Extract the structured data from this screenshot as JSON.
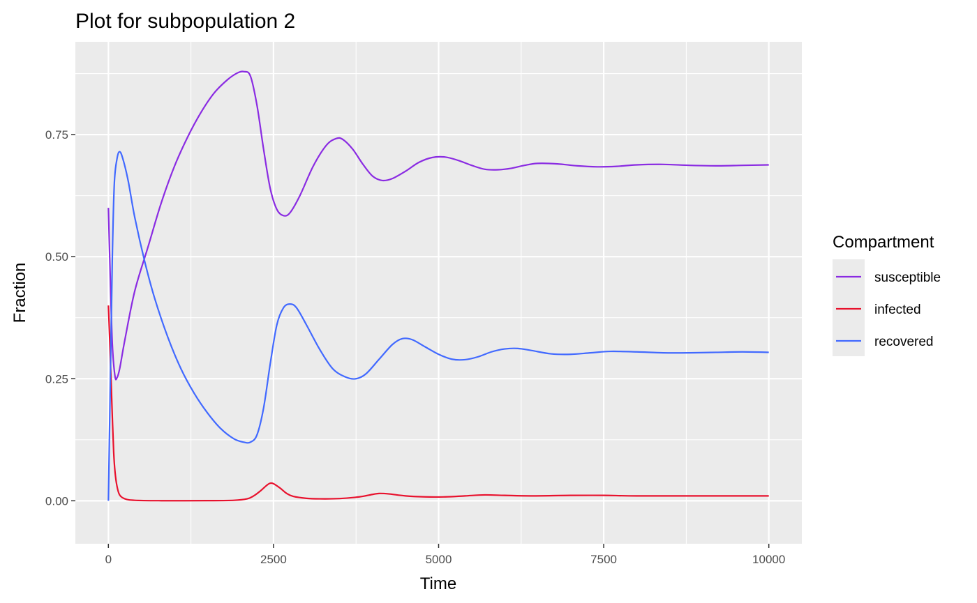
{
  "chart_data": {
    "type": "line",
    "title": "Plot for subpopulation 2",
    "xlabel": "Time",
    "ylabel": "Fraction",
    "xlim": [
      -500,
      10500
    ],
    "ylim": [
      -0.088,
      0.94
    ],
    "x_ticks": [
      0,
      2500,
      5000,
      7500,
      10000
    ],
    "x_tick_labels": [
      "0",
      "2500",
      "5000",
      "7500",
      "10000"
    ],
    "y_ticks": [
      0,
      0.25,
      0.5,
      0.75
    ],
    "y_tick_labels": [
      "0.00",
      "0.25",
      "0.50",
      "0.75"
    ],
    "grid": true,
    "legend_position": "right",
    "legend_title": "Compartment",
    "series": [
      {
        "name": "susceptible",
        "color": "#8a2be2",
        "points": [
          [
            0,
            0.6
          ],
          [
            30,
            0.45
          ],
          [
            60,
            0.32
          ],
          [
            100,
            0.255
          ],
          [
            130,
            0.252
          ],
          [
            170,
            0.27
          ],
          [
            250,
            0.33
          ],
          [
            400,
            0.43
          ],
          [
            600,
            0.52
          ],
          [
            800,
            0.61
          ],
          [
            1000,
            0.685
          ],
          [
            1200,
            0.745
          ],
          [
            1400,
            0.795
          ],
          [
            1600,
            0.835
          ],
          [
            1800,
            0.862
          ],
          [
            1950,
            0.876
          ],
          [
            2050,
            0.879
          ],
          [
            2150,
            0.87
          ],
          [
            2250,
            0.81
          ],
          [
            2350,
            0.72
          ],
          [
            2450,
            0.64
          ],
          [
            2550,
            0.597
          ],
          [
            2650,
            0.584
          ],
          [
            2750,
            0.59
          ],
          [
            2900,
            0.625
          ],
          [
            3100,
            0.685
          ],
          [
            3300,
            0.728
          ],
          [
            3450,
            0.742
          ],
          [
            3550,
            0.74
          ],
          [
            3700,
            0.72
          ],
          [
            3850,
            0.69
          ],
          [
            4000,
            0.665
          ],
          [
            4150,
            0.656
          ],
          [
            4300,
            0.66
          ],
          [
            4500,
            0.675
          ],
          [
            4700,
            0.693
          ],
          [
            4900,
            0.703
          ],
          [
            5100,
            0.704
          ],
          [
            5300,
            0.697
          ],
          [
            5500,
            0.687
          ],
          [
            5700,
            0.679
          ],
          [
            5900,
            0.678
          ],
          [
            6100,
            0.681
          ],
          [
            6300,
            0.687
          ],
          [
            6500,
            0.691
          ],
          [
            6800,
            0.69
          ],
          [
            7100,
            0.686
          ],
          [
            7400,
            0.684
          ],
          [
            7700,
            0.685
          ],
          [
            8000,
            0.688
          ],
          [
            8400,
            0.689
          ],
          [
            8800,
            0.687
          ],
          [
            9200,
            0.686
          ],
          [
            9600,
            0.687
          ],
          [
            10000,
            0.688
          ]
        ]
      },
      {
        "name": "infected",
        "color": "#e8112d",
        "points": [
          [
            0,
            0.4
          ],
          [
            20,
            0.33
          ],
          [
            40,
            0.25
          ],
          [
            60,
            0.17
          ],
          [
            80,
            0.1
          ],
          [
            100,
            0.06
          ],
          [
            130,
            0.03
          ],
          [
            170,
            0.012
          ],
          [
            250,
            0.004
          ],
          [
            400,
            0.001
          ],
          [
            800,
            0.0002
          ],
          [
            1500,
            0.0003
          ],
          [
            1900,
            0.001
          ],
          [
            2100,
            0.004
          ],
          [
            2200,
            0.01
          ],
          [
            2300,
            0.02
          ],
          [
            2400,
            0.032
          ],
          [
            2450,
            0.036
          ],
          [
            2500,
            0.035
          ],
          [
            2600,
            0.026
          ],
          [
            2700,
            0.015
          ],
          [
            2800,
            0.009
          ],
          [
            3000,
            0.005
          ],
          [
            3200,
            0.004
          ],
          [
            3500,
            0.0045
          ],
          [
            3800,
            0.008
          ],
          [
            4000,
            0.013
          ],
          [
            4100,
            0.015
          ],
          [
            4250,
            0.014
          ],
          [
            4500,
            0.01
          ],
          [
            4800,
            0.008
          ],
          [
            5100,
            0.008
          ],
          [
            5400,
            0.01
          ],
          [
            5700,
            0.012
          ],
          [
            6000,
            0.011
          ],
          [
            6400,
            0.01
          ],
          [
            7000,
            0.011
          ],
          [
            7500,
            0.011
          ],
          [
            8000,
            0.01
          ],
          [
            9000,
            0.01
          ],
          [
            10000,
            0.01
          ]
        ]
      },
      {
        "name": "recovered",
        "color": "#4169ff",
        "points": [
          [
            0,
            0.0
          ],
          [
            30,
            0.25
          ],
          [
            60,
            0.5
          ],
          [
            90,
            0.65
          ],
          [
            130,
            0.7
          ],
          [
            170,
            0.715
          ],
          [
            220,
            0.7
          ],
          [
            300,
            0.655
          ],
          [
            400,
            0.58
          ],
          [
            550,
            0.49
          ],
          [
            700,
            0.415
          ],
          [
            900,
            0.335
          ],
          [
            1100,
            0.27
          ],
          [
            1300,
            0.22
          ],
          [
            1500,
            0.18
          ],
          [
            1700,
            0.148
          ],
          [
            1900,
            0.127
          ],
          [
            2050,
            0.12
          ],
          [
            2150,
            0.12
          ],
          [
            2250,
            0.135
          ],
          [
            2350,
            0.19
          ],
          [
            2450,
            0.28
          ],
          [
            2550,
            0.36
          ],
          [
            2650,
            0.395
          ],
          [
            2750,
            0.403
          ],
          [
            2850,
            0.395
          ],
          [
            3000,
            0.36
          ],
          [
            3200,
            0.31
          ],
          [
            3400,
            0.27
          ],
          [
            3600,
            0.253
          ],
          [
            3750,
            0.25
          ],
          [
            3900,
            0.26
          ],
          [
            4100,
            0.29
          ],
          [
            4300,
            0.32
          ],
          [
            4450,
            0.332
          ],
          [
            4600,
            0.33
          ],
          [
            4800,
            0.315
          ],
          [
            5000,
            0.3
          ],
          [
            5200,
            0.29
          ],
          [
            5400,
            0.289
          ],
          [
            5600,
            0.295
          ],
          [
            5800,
            0.305
          ],
          [
            6000,
            0.311
          ],
          [
            6200,
            0.312
          ],
          [
            6400,
            0.308
          ],
          [
            6700,
            0.301
          ],
          [
            7000,
            0.3
          ],
          [
            7300,
            0.303
          ],
          [
            7600,
            0.306
          ],
          [
            8000,
            0.305
          ],
          [
            8400,
            0.303
          ],
          [
            8800,
            0.303
          ],
          [
            9200,
            0.304
          ],
          [
            9600,
            0.305
          ],
          [
            10000,
            0.304
          ]
        ]
      }
    ]
  }
}
